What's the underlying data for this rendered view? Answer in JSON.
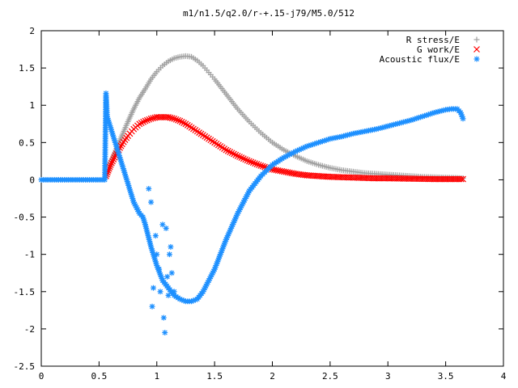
{
  "chart_data": {
    "type": "scatter",
    "title": "m1/n1.5/q2.0/r-+.15-j79/M5.0/512",
    "xlabel": "",
    "ylabel": "",
    "xlim": [
      0,
      4
    ],
    "ylim": [
      -2.5,
      2
    ],
    "x_ticks": [
      0,
      0.5,
      1,
      1.5,
      2,
      2.5,
      3,
      3.5,
      4
    ],
    "x_tick_labels": [
      "0",
      "0.5",
      "1",
      "1.5",
      "2",
      "2.5",
      "3",
      "3.5",
      "4"
    ],
    "y_ticks": [
      -2.5,
      -2,
      -1.5,
      -1,
      -0.5,
      0,
      0.5,
      1,
      1.5,
      2
    ],
    "y_tick_labels": [
      "-2.5",
      "-2",
      "-1.5",
      "-1",
      "-0.5",
      "0",
      "0.5",
      "1",
      "1.5",
      "2"
    ],
    "grid": false,
    "legend_position": "top-right",
    "series": [
      {
        "name": "R stress/E",
        "marker": "plus",
        "color": "#a0a0a0",
        "x": [
          0.56,
          0.6,
          0.65,
          0.7,
          0.75,
          0.8,
          0.85,
          0.9,
          0.95,
          1.0,
          1.05,
          1.1,
          1.15,
          1.2,
          1.25,
          1.3,
          1.35,
          1.4,
          1.45,
          1.5,
          1.6,
          1.7,
          1.8,
          1.9,
          2.0,
          2.1,
          2.2,
          2.3,
          2.4,
          2.5,
          2.6,
          2.7,
          2.8,
          2.9,
          3.0,
          3.1,
          3.2,
          3.3,
          3.4,
          3.5,
          3.6,
          3.65
        ],
        "y": [
          0.05,
          0.22,
          0.42,
          0.6,
          0.78,
          0.95,
          1.1,
          1.22,
          1.35,
          1.45,
          1.53,
          1.59,
          1.63,
          1.65,
          1.66,
          1.65,
          1.6,
          1.53,
          1.44,
          1.35,
          1.15,
          0.95,
          0.78,
          0.63,
          0.5,
          0.4,
          0.32,
          0.25,
          0.2,
          0.16,
          0.13,
          0.11,
          0.09,
          0.08,
          0.07,
          0.06,
          0.05,
          0.04,
          0.035,
          0.03,
          0.025,
          0.02
        ]
      },
      {
        "name": "G work/E",
        "marker": "cross",
        "color": "#ff0000",
        "x": [
          0.56,
          0.6,
          0.65,
          0.7,
          0.75,
          0.8,
          0.85,
          0.9,
          0.95,
          1.0,
          1.05,
          1.1,
          1.15,
          1.2,
          1.25,
          1.3,
          1.4,
          1.5,
          1.6,
          1.7,
          1.8,
          1.9,
          2.0,
          2.1,
          2.2,
          2.3,
          2.4,
          2.5,
          2.6,
          2.7,
          2.8,
          2.9,
          3.0,
          3.2,
          3.4,
          3.6,
          3.65
        ],
        "y": [
          0.05,
          0.2,
          0.35,
          0.48,
          0.59,
          0.68,
          0.75,
          0.79,
          0.82,
          0.84,
          0.84,
          0.84,
          0.82,
          0.79,
          0.75,
          0.7,
          0.6,
          0.5,
          0.4,
          0.32,
          0.25,
          0.19,
          0.14,
          0.11,
          0.08,
          0.06,
          0.05,
          0.04,
          0.035,
          0.03,
          0.025,
          0.02,
          0.02,
          0.015,
          0.01,
          0.01,
          0.01
        ]
      },
      {
        "name": "Acoustic flux/E",
        "marker": "star",
        "color": "#1e90ff",
        "x": [
          0.0,
          0.1,
          0.2,
          0.3,
          0.4,
          0.5,
          0.55,
          0.56,
          0.57,
          0.6,
          0.65,
          0.7,
          0.75,
          0.8,
          0.85,
          0.88,
          0.9,
          0.95,
          1.0,
          1.05,
          1.1,
          1.15,
          1.2,
          1.25,
          1.3,
          1.35,
          1.4,
          1.5,
          1.6,
          1.7,
          1.8,
          1.9,
          2.0,
          2.1,
          2.2,
          2.3,
          2.4,
          2.5,
          2.6,
          2.7,
          2.8,
          2.9,
          3.0,
          3.1,
          3.2,
          3.3,
          3.4,
          3.5,
          3.55,
          3.6,
          3.63,
          3.65
        ],
        "y": [
          0.0,
          0.0,
          0.0,
          0.0,
          0.0,
          0.0,
          0.0,
          1.16,
          0.85,
          0.7,
          0.45,
          0.2,
          -0.05,
          -0.3,
          -0.45,
          -0.5,
          -0.6,
          -0.9,
          -1.15,
          -1.35,
          -1.45,
          -1.55,
          -1.6,
          -1.63,
          -1.63,
          -1.6,
          -1.5,
          -1.2,
          -0.8,
          -0.45,
          -0.15,
          0.05,
          0.2,
          0.3,
          0.38,
          0.45,
          0.5,
          0.55,
          0.58,
          0.62,
          0.65,
          0.68,
          0.72,
          0.76,
          0.8,
          0.85,
          0.9,
          0.94,
          0.95,
          0.95,
          0.9,
          0.82
        ]
      },
      {
        "name": "",
        "marker": "star",
        "color": "#1e90ff",
        "x": [
          0.93,
          0.95,
          0.97,
          0.96,
          0.99,
          1.0,
          1.02,
          1.03,
          1.05,
          1.06,
          1.07,
          1.08,
          1.09,
          1.1,
          1.11,
          1.12,
          1.13,
          1.15
        ],
        "y": [
          -0.12,
          -0.3,
          -1.45,
          -1.7,
          -0.75,
          -1.0,
          -1.2,
          -1.5,
          -0.6,
          -1.85,
          -2.05,
          -0.65,
          -1.3,
          -1.55,
          -1.0,
          -0.9,
          -1.25,
          -1.5
        ]
      }
    ]
  }
}
